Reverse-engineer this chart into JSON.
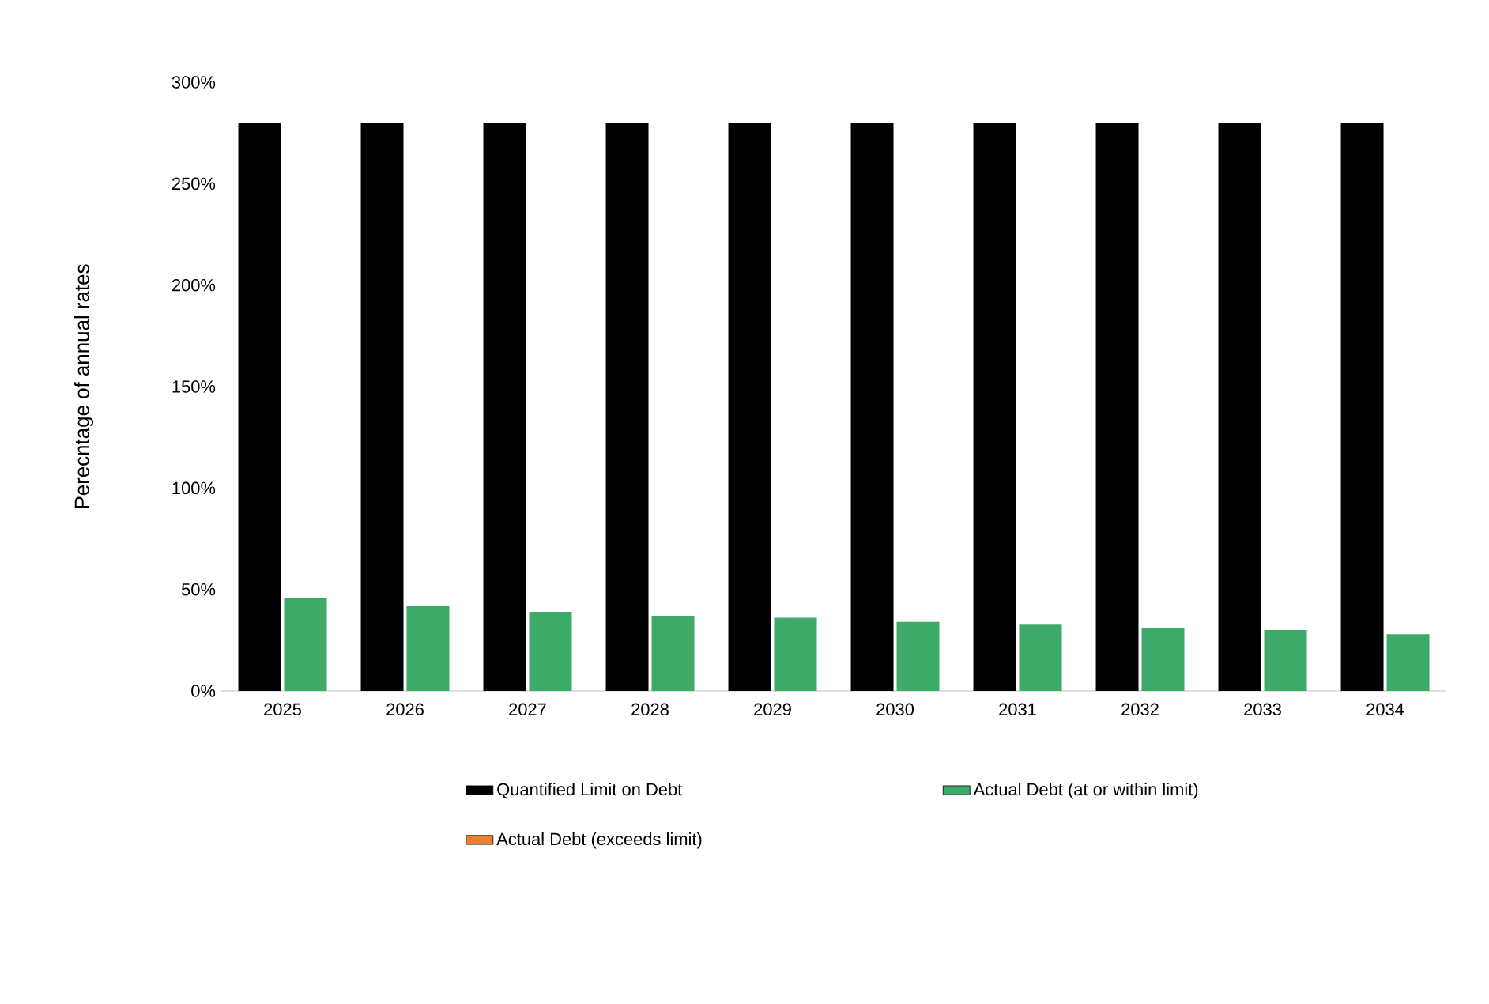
{
  "chart_data": {
    "type": "bar",
    "ylabel": "Perecntage of annual rates",
    "categories": [
      "2025",
      "2026",
      "2027",
      "2028",
      "2029",
      "2030",
      "2031",
      "2032",
      "2033",
      "2034"
    ],
    "series": [
      {
        "name": "Quantified Limit on Debt",
        "color": "#000000",
        "values": [
          280,
          280,
          280,
          280,
          280,
          280,
          280,
          280,
          280,
          280
        ]
      },
      {
        "name": "Actual Debt (at or within limit)",
        "color": "#3daa6a",
        "values": [
          46,
          42,
          39,
          37,
          36,
          34,
          33,
          31,
          30,
          28
        ]
      },
      {
        "name": "Actual Debt (exceeds limit)",
        "color": "#f07f2d",
        "values": [
          null,
          null,
          null,
          null,
          null,
          null,
          null,
          null,
          null,
          null
        ]
      }
    ],
    "ylim": [
      0,
      300
    ],
    "yticks": [
      {
        "value": 0,
        "label": "0%"
      },
      {
        "value": 50,
        "label": "50%"
      },
      {
        "value": 100,
        "label": "100%"
      },
      {
        "value": 150,
        "label": "150%"
      },
      {
        "value": 200,
        "label": "200%"
      },
      {
        "value": 250,
        "label": "250%"
      },
      {
        "value": 300,
        "label": "300%"
      }
    ],
    "grid": false,
    "legend": "bottom"
  }
}
